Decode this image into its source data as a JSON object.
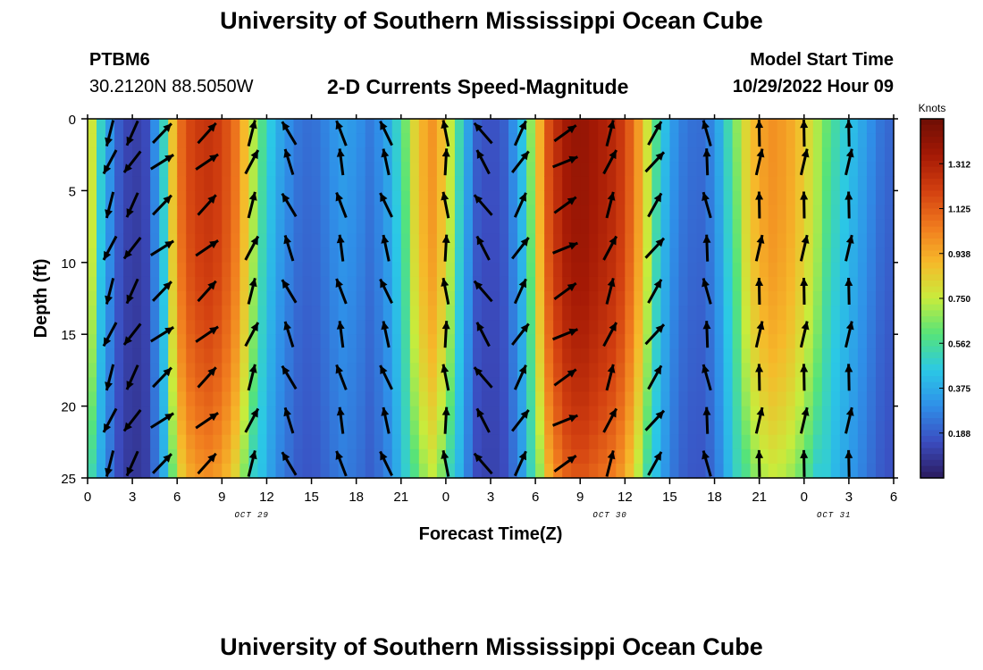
{
  "header": {
    "title": "University of Southern Mississippi Ocean Cube",
    "station_id": "PTBM6",
    "coordinates": "30.2120N  88.5050W",
    "plot_title": "2-D Currents Speed-Magnitude",
    "model_start_label": "Model Start Time",
    "model_start_value": "10/29/2022 Hour 09"
  },
  "footer": {
    "title": "University of Southern Mississippi Ocean Cube"
  },
  "chart_data": {
    "type": "heatmap",
    "title": "2-D Currents Speed-Magnitude",
    "xlabel": "Forecast Time(Z)",
    "ylabel": "Depth (ft)",
    "x_tick_labels": [
      "0",
      "3",
      "6",
      "9",
      "12",
      "15",
      "18",
      "21",
      "0",
      "3",
      "6",
      "9",
      "12",
      "15",
      "18",
      "21",
      "0",
      "3",
      "6"
    ],
    "x_range_hours": [
      0,
      54
    ],
    "date_labels": [
      {
        "text": "OCT 29",
        "hour": 11
      },
      {
        "text": "OCT 30",
        "hour": 35
      },
      {
        "text": "OCT 31",
        "hour": 50
      }
    ],
    "y_ticks": [
      0,
      5,
      10,
      15,
      20,
      25
    ],
    "ylim": [
      0,
      25
    ],
    "y_inverted": true,
    "colorbar": {
      "label": "Knots",
      "ticks": [
        "1.312",
        "1.125",
        "0.938",
        "0.750",
        "0.562",
        "0.375",
        "0.188"
      ],
      "range": [
        0,
        1.5
      ],
      "colors": [
        "#2b1b5e",
        "#3b4cc0",
        "#2f8fe8",
        "#2bc8e6",
        "#55e37a",
        "#c8ec3c",
        "#f6b92a",
        "#f07a1e",
        "#d23f10",
        "#a41905",
        "#6e0e05"
      ]
    },
    "speed_profile_by_hour": {
      "hours": [
        0,
        1,
        2,
        3,
        4,
        5,
        6,
        7,
        8,
        9,
        10,
        11,
        12,
        13,
        14,
        15,
        16,
        17,
        18,
        19,
        20,
        21,
        22,
        23,
        24,
        25,
        26,
        27,
        28,
        29,
        30,
        31,
        32,
        33,
        34,
        35,
        36,
        37,
        38,
        39,
        40,
        41,
        42,
        43,
        44,
        45,
        46,
        47,
        48,
        49,
        50,
        51,
        52,
        53,
        54
      ],
      "surface_knots": [
        0.9,
        0.45,
        0.2,
        0.1,
        0.15,
        0.45,
        1.05,
        1.2,
        1.25,
        1.2,
        1.05,
        0.75,
        0.5,
        0.35,
        0.25,
        0.22,
        0.28,
        0.35,
        0.32,
        0.25,
        0.35,
        0.55,
        0.85,
        1.0,
        0.85,
        0.5,
        0.2,
        0.15,
        0.2,
        0.4,
        0.8,
        1.2,
        1.35,
        1.4,
        1.35,
        1.3,
        1.2,
        0.95,
        0.6,
        0.35,
        0.25,
        0.22,
        0.3,
        0.55,
        0.8,
        0.95,
        1.0,
        0.95,
        0.85,
        0.7,
        0.55,
        0.45,
        0.35,
        0.25,
        0.2
      ]
    },
    "vector_rows_depth_ft": [
      1,
      3,
      6,
      9,
      12,
      15,
      18,
      21,
      24
    ],
    "vector_cols_hour": [
      1.5,
      3,
      5,
      8,
      11,
      13.5,
      17,
      20,
      24,
      26.5,
      29,
      32,
      35,
      38,
      41.5,
      45,
      48,
      51
    ],
    "vector_dir_deg_by_col": [
      -160,
      -150,
      50,
      48,
      20,
      -25,
      -15,
      -20,
      -5,
      -35,
      30,
      60,
      20,
      35,
      -10,
      5,
      5,
      5
    ]
  }
}
